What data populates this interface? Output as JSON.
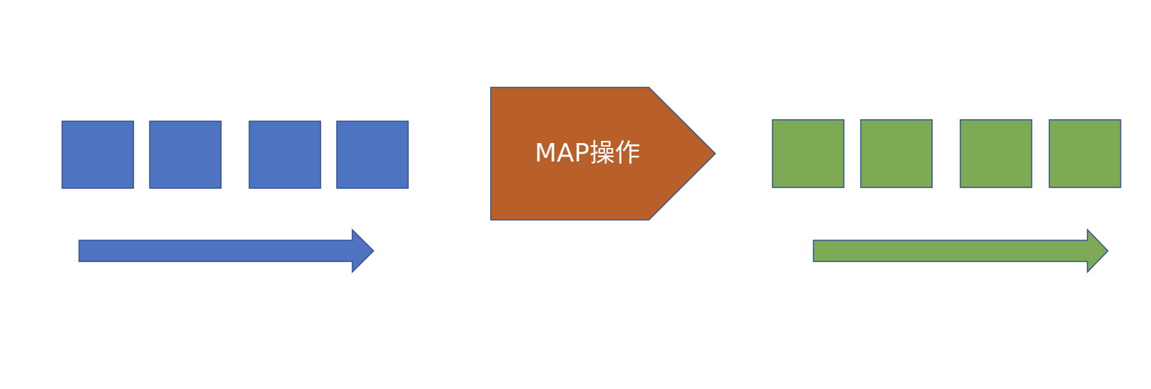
{
  "diagram": {
    "input": {
      "item_count": 4,
      "color": "#4e73c0",
      "border_color": "#2f4f8f"
    },
    "operation": {
      "label": "MAP操作",
      "color": "#b85f2a",
      "border_color": "#2f4f8f",
      "text_color": "#ffffff"
    },
    "output": {
      "item_count": 4,
      "color": "#7faa55",
      "border_color": "#2f4f8f"
    }
  }
}
